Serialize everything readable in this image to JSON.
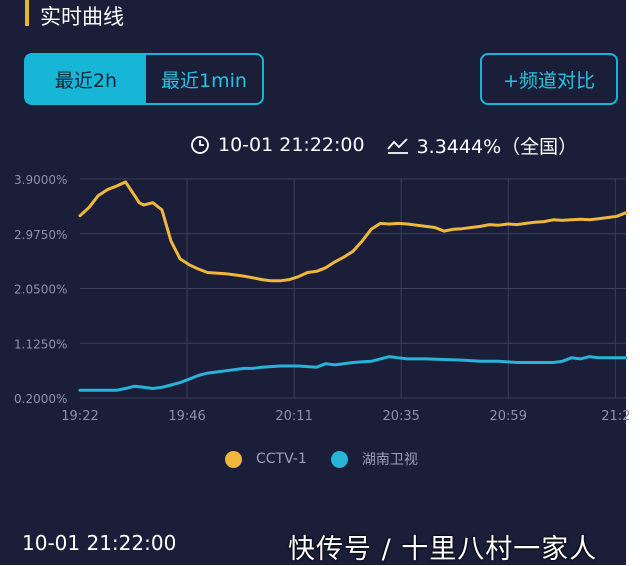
{
  "header": {
    "title": "实时曲线"
  },
  "range_tabs": [
    {
      "label": "最近2h",
      "active": true
    },
    {
      "label": "最近1min",
      "active": false
    }
  ],
  "compare_button": {
    "label": "+频道对比"
  },
  "info_bar": {
    "time": "10-01 21:22:00",
    "rating": "3.3444%（全国）"
  },
  "colors": {
    "background": "#1a1e39",
    "accent": "#17b6d6",
    "cctv1": "#f0b83a",
    "hunan": "#28b4d8",
    "title_bar": "#e8b81e"
  },
  "footer": {
    "timestamp": "10-01 21:22:00",
    "watermark": "快传号 / 十里八村一家人"
  },
  "chart_data": {
    "type": "line",
    "x_tick_labels": [
      "19:22",
      "19:46",
      "20:11",
      "20:35",
      "20:59",
      "21:2"
    ],
    "y_tick_labels": [
      "3.9000%",
      "2.9750%",
      "2.0500%",
      "1.1250%",
      "0.2000%"
    ],
    "ylim": [
      0.2,
      3.9
    ],
    "x_range_minutes": [
      0,
      120
    ],
    "grid": true,
    "legend_position": "bottom",
    "series": [
      {
        "name": "CCTV-1",
        "color": "#f0b83a",
        "x": [
          0,
          2,
          4,
          6,
          8,
          10,
          12,
          13,
          14,
          16,
          18,
          20,
          22,
          24,
          26,
          28,
          30,
          32,
          34,
          36,
          38,
          40,
          42,
          44,
          46,
          48,
          50,
          52,
          54,
          56,
          58,
          60,
          62,
          64,
          66,
          68,
          70,
          72,
          74,
          76,
          78,
          80,
          82,
          84,
          86,
          88,
          90,
          92,
          94,
          96,
          98,
          100,
          102,
          104,
          106,
          108,
          110,
          112,
          114,
          116,
          118,
          120
        ],
        "y": [
          3.28,
          3.42,
          3.62,
          3.72,
          3.78,
          3.85,
          3.62,
          3.5,
          3.46,
          3.5,
          3.38,
          2.85,
          2.55,
          2.45,
          2.38,
          2.32,
          2.31,
          2.3,
          2.28,
          2.26,
          2.23,
          2.2,
          2.18,
          2.18,
          2.2,
          2.25,
          2.32,
          2.34,
          2.4,
          2.5,
          2.58,
          2.68,
          2.85,
          3.05,
          3.15,
          3.14,
          3.15,
          3.14,
          3.12,
          3.1,
          3.08,
          3.02,
          3.05,
          3.06,
          3.08,
          3.1,
          3.13,
          3.12,
          3.14,
          3.13,
          3.15,
          3.17,
          3.18,
          3.21,
          3.2,
          3.21,
          3.22,
          3.21,
          3.23,
          3.25,
          3.27,
          3.33
        ]
      },
      {
        "name": "湖南卫视",
        "color": "#28b4d8",
        "x": [
          0,
          4,
          8,
          10,
          12,
          14,
          16,
          18,
          20,
          22,
          24,
          26,
          28,
          30,
          32,
          34,
          36,
          38,
          40,
          44,
          48,
          52,
          54,
          56,
          60,
          64,
          68,
          70,
          72,
          76,
          80,
          84,
          88,
          92,
          96,
          100,
          104,
          106,
          108,
          110,
          112,
          114,
          116,
          120
        ],
        "y": [
          0.33,
          0.33,
          0.33,
          0.36,
          0.4,
          0.38,
          0.36,
          0.38,
          0.42,
          0.46,
          0.52,
          0.58,
          0.62,
          0.64,
          0.66,
          0.68,
          0.7,
          0.7,
          0.72,
          0.74,
          0.74,
          0.72,
          0.78,
          0.76,
          0.8,
          0.82,
          0.9,
          0.88,
          0.86,
          0.86,
          0.85,
          0.84,
          0.82,
          0.82,
          0.8,
          0.8,
          0.8,
          0.82,
          0.88,
          0.86,
          0.9,
          0.88,
          0.88,
          0.88
        ]
      }
    ]
  }
}
